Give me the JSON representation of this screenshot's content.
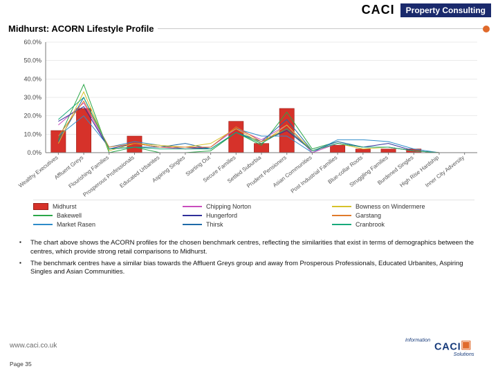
{
  "header": {
    "brand": "CACI",
    "tagline": "Property Consulting"
  },
  "title": "Midhurst: ACORN Lifestyle Profile",
  "chart": {
    "type": "bar+multiline",
    "background_color": "#ffffff",
    "grid_color": "#d6d6d6",
    "axis_color": "#777777",
    "label_fontsize": 9,
    "cat_fontsize": 8,
    "ylim": [
      0,
      60
    ],
    "ytick_step": 10,
    "ylabel_suffix": ".0%",
    "categories": [
      "Wealthy Executives",
      "Affluent Greys",
      "Flourishing Families",
      "Prosperous Professionals",
      "Educated Urbanites",
      "Aspiring Singles",
      "Starting Out",
      "Secure Families",
      "Settled Suburbia",
      "Prudent Pensioners",
      "Asian Communities",
      "Post Industrial Families",
      "Blue-collar Roots",
      "Struggling Families",
      "Burdened Singles",
      "High Rise Hardship",
      "Inner City Adversity"
    ],
    "bars": {
      "color": "#d6322a",
      "border": "#9a1f19",
      "width": 0.58,
      "values": [
        12,
        24,
        0,
        9,
        0,
        0,
        0,
        17,
        5,
        24,
        0,
        4,
        2,
        2,
        2,
        0,
        0
      ]
    },
    "lines": [
      {
        "name": "Bakewell",
        "color": "#2aa748",
        "width": 1,
        "values": [
          7,
          37,
          0,
          3,
          0,
          0,
          1,
          11,
          4,
          22,
          2,
          6,
          3,
          3,
          1,
          0,
          0
        ]
      },
      {
        "name": "Market Rasen",
        "color": "#2d8bc9",
        "width": 1,
        "values": [
          9,
          20,
          3,
          6,
          4,
          2,
          3,
          13,
          9,
          9,
          0,
          7,
          7,
          6,
          2,
          0,
          0
        ]
      },
      {
        "name": "Chipping Norton",
        "color": "#c94dbd",
        "width": 1,
        "values": [
          15,
          27,
          2,
          3,
          3,
          2,
          3,
          13,
          7,
          15,
          0,
          5,
          3,
          3,
          1,
          0,
          0
        ]
      },
      {
        "name": "Hungerford",
        "color": "#2f2f9a",
        "width": 1,
        "values": [
          17,
          25,
          2,
          5,
          3,
          3,
          2,
          11,
          6,
          12,
          1,
          5,
          3,
          5,
          1,
          0,
          0
        ]
      },
      {
        "name": "Thirsk",
        "color": "#1e6aa8",
        "width": 1,
        "values": [
          6,
          30,
          2,
          3,
          3,
          5,
          2,
          11,
          6,
          18,
          1,
          6,
          3,
          3,
          1,
          0,
          0
        ]
      },
      {
        "name": "Bowness on Windermere",
        "color": "#d6c22a",
        "width": 1,
        "values": [
          5,
          33,
          1,
          5,
          4,
          3,
          5,
          13,
          5,
          15,
          1,
          5,
          2,
          3,
          1,
          0,
          0
        ]
      },
      {
        "name": "Garstang",
        "color": "#e07a2a",
        "width": 1,
        "values": [
          9,
          28,
          3,
          5,
          3,
          3,
          3,
          14,
          6,
          13,
          1,
          5,
          3,
          3,
          1,
          0,
          0
        ]
      },
      {
        "name": "Cranbrook",
        "color": "#17a97a",
        "width": 1,
        "values": [
          18,
          30,
          2,
          3,
          2,
          2,
          2,
          11,
          5,
          13,
          1,
          5,
          3,
          3,
          1,
          0,
          0
        ]
      }
    ]
  },
  "legend": {
    "cols": 3,
    "items": [
      {
        "label": "Midhurst",
        "kind": "bar",
        "color": "#d6322a",
        "border": "#9a1f19"
      },
      {
        "label": "Chipping Norton",
        "kind": "line",
        "color": "#c94dbd"
      },
      {
        "label": "Bowness on Windermere",
        "kind": "line",
        "color": "#d6c22a"
      },
      {
        "label": "Bakewell",
        "kind": "line",
        "color": "#2aa748"
      },
      {
        "label": "Hungerford",
        "kind": "line",
        "color": "#2f2f9a"
      },
      {
        "label": "Garstang",
        "kind": "line",
        "color": "#e07a2a"
      },
      {
        "label": "Market Rasen",
        "kind": "line",
        "color": "#2d8bc9"
      },
      {
        "label": "Thirsk",
        "kind": "line",
        "color": "#1e6aa8"
      },
      {
        "label": "Cranbrook",
        "kind": "line",
        "color": "#17a97a"
      }
    ]
  },
  "notes": [
    "The chart above shows the ACORN profiles for the chosen benchmark centres, reflecting the similarities that exist in terms of demographics between the centres, which provide strong retail comparisons to Midhurst.",
    "The benchmark centres have a similar bias towards the Affluent Greys group and away from Prosperous Professionals, Educated Urbanites, Aspiring Singles and Asian Communities."
  ],
  "footer": {
    "url": "www.caci.co.uk",
    "page": "Page 35",
    "logo_text_top": "Information",
    "logo_text_brand": "CACI",
    "logo_text_bottom": "Solutions",
    "logo_colors": {
      "navy": "#163a7a",
      "orange": "#e06a2b",
      "text": "#163a7a"
    }
  }
}
